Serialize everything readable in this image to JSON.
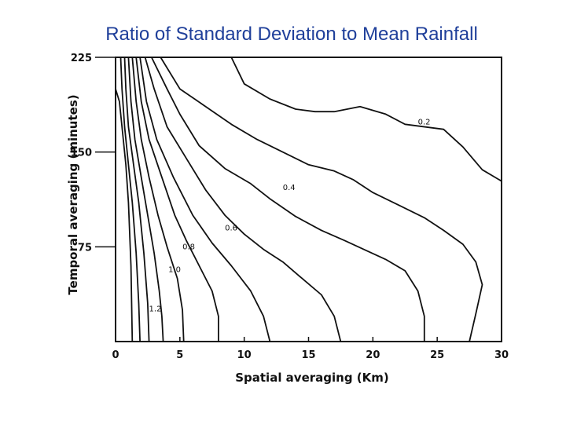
{
  "slide": {
    "title": "Ratio of Standard Deviation to Mean Rainfall"
  },
  "chart_data": {
    "type": "contour",
    "title": "Ratio of Standard Deviation to Mean Rainfall",
    "xlabel": "Spatial averaging (Km)",
    "ylabel": "Temporal averaging (minutes)",
    "xlim": [
      0,
      30
    ],
    "ylim": [
      0,
      225
    ],
    "xticks": [
      "0",
      "5",
      "10",
      "15",
      "20",
      "25",
      "30"
    ],
    "yticks": [
      "75",
      "150",
      "225"
    ],
    "grid": false,
    "contours": [
      {
        "label": "0.2",
        "points": [
          [
            9,
            225
          ],
          [
            10,
            204
          ],
          [
            12,
            192
          ],
          [
            14,
            184
          ],
          [
            15.5,
            182
          ],
          [
            17,
            182
          ],
          [
            19,
            186
          ],
          [
            21,
            180
          ],
          [
            22.5,
            172
          ],
          [
            25.5,
            168
          ],
          [
            27,
            154
          ],
          [
            28.5,
            136
          ],
          [
            30,
            127
          ]
        ]
      },
      {
        "label": "0.4",
        "points": [
          [
            3.5,
            225
          ],
          [
            5,
            200
          ],
          [
            7,
            186
          ],
          [
            9,
            172
          ],
          [
            11,
            160
          ],
          [
            13,
            150
          ],
          [
            15,
            140
          ],
          [
            17,
            135
          ],
          [
            18.5,
            128
          ],
          [
            20,
            118
          ],
          [
            22,
            108
          ],
          [
            24,
            98
          ],
          [
            25.5,
            88
          ],
          [
            27,
            77
          ],
          [
            28,
            63
          ],
          [
            28.5,
            45
          ],
          [
            28,
            22
          ],
          [
            27.5,
            0
          ]
        ]
      },
      {
        "label": "0.6",
        "points": [
          [
            2.8,
            225
          ],
          [
            4,
            200
          ],
          [
            5,
            180
          ],
          [
            6.5,
            155
          ],
          [
            8.5,
            137
          ],
          [
            10.5,
            125
          ],
          [
            12,
            113
          ],
          [
            14,
            99
          ],
          [
            16,
            88
          ],
          [
            17.8,
            80
          ],
          [
            19.5,
            72
          ],
          [
            21,
            65
          ],
          [
            22.5,
            56
          ],
          [
            23.5,
            40
          ],
          [
            24,
            20
          ],
          [
            24,
            0
          ]
        ]
      },
      {
        "label": "0.8",
        "points": [
          [
            2.3,
            225
          ],
          [
            3,
            200
          ],
          [
            4,
            170
          ],
          [
            5.5,
            145
          ],
          [
            7,
            120
          ],
          [
            8.5,
            100
          ],
          [
            10,
            85
          ],
          [
            11.5,
            73
          ],
          [
            13,
            63
          ],
          [
            14.5,
            50
          ],
          [
            16,
            37
          ],
          [
            17,
            20
          ],
          [
            17.5,
            0
          ]
        ]
      },
      {
        "label": "",
        "points": [
          [
            1.9,
            225
          ],
          [
            2.4,
            190
          ],
          [
            3.2,
            160
          ],
          [
            4.5,
            130
          ],
          [
            6,
            100
          ],
          [
            7.5,
            78
          ],
          [
            9,
            60
          ],
          [
            10.5,
            40
          ],
          [
            11.5,
            20
          ],
          [
            12,
            0
          ]
        ]
      },
      {
        "label": "1.0",
        "points": [
          [
            1.6,
            225
          ],
          [
            2,
            190
          ],
          [
            2.6,
            160
          ],
          [
            3.6,
            130
          ],
          [
            4.6,
            100
          ],
          [
            5.5,
            80
          ],
          [
            6.5,
            60
          ],
          [
            7.5,
            40
          ],
          [
            8,
            20
          ],
          [
            8,
            0
          ]
        ]
      },
      {
        "label": "",
        "points": [
          [
            1.3,
            225
          ],
          [
            1.6,
            190
          ],
          [
            2,
            160
          ],
          [
            2.6,
            130
          ],
          [
            3.3,
            100
          ],
          [
            4,
            75
          ],
          [
            4.8,
            50
          ],
          [
            5.2,
            25
          ],
          [
            5.3,
            0
          ]
        ]
      },
      {
        "label": "1.2",
        "points": [
          [
            1,
            225
          ],
          [
            1.2,
            190
          ],
          [
            1.5,
            160
          ],
          [
            2,
            130
          ],
          [
            2.5,
            100
          ],
          [
            3,
            70
          ],
          [
            3.4,
            40
          ],
          [
            3.6,
            20
          ],
          [
            3.7,
            0
          ]
        ]
      },
      {
        "label": "",
        "points": [
          [
            0.7,
            225
          ],
          [
            0.8,
            200
          ],
          [
            1,
            170
          ],
          [
            1.4,
            140
          ],
          [
            1.8,
            110
          ],
          [
            2.2,
            70
          ],
          [
            2.5,
            30
          ],
          [
            2.6,
            0
          ]
        ]
      },
      {
        "label": "",
        "points": [
          [
            0.4,
            225
          ],
          [
            0.5,
            200
          ],
          [
            0.7,
            170
          ],
          [
            1,
            140
          ],
          [
            1.3,
            110
          ],
          [
            1.6,
            70
          ],
          [
            1.8,
            30
          ],
          [
            1.9,
            0
          ]
        ]
      },
      {
        "label": "",
        "points": [
          [
            0,
            200
          ],
          [
            0.3,
            190
          ],
          [
            0.5,
            170
          ],
          [
            0.8,
            140
          ],
          [
            1,
            110
          ],
          [
            1.2,
            60
          ],
          [
            1.3,
            0
          ]
        ]
      }
    ]
  }
}
